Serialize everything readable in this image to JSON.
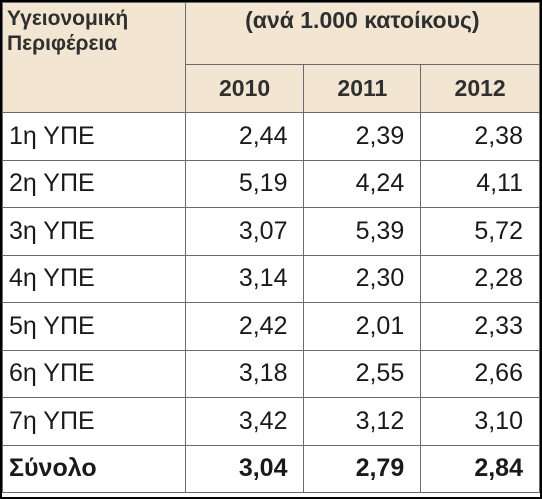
{
  "header": {
    "region_label": "Υγειονομική Περιφέρεια",
    "unit_label": "(ανά 1.000 κατοίκους)",
    "years": [
      "2010",
      "2011",
      "2012"
    ]
  },
  "rows": [
    {
      "label": "1η ΥΠΕ",
      "values": [
        "2,44",
        "2,39",
        "2,38"
      ]
    },
    {
      "label": "2η ΥΠΕ",
      "values": [
        "5,19",
        "4,24",
        "4,11"
      ]
    },
    {
      "label": "3η ΥΠΕ",
      "values": [
        "3,07",
        "5,39",
        "5,72"
      ]
    },
    {
      "label": "4η ΥΠΕ",
      "values": [
        "3,14",
        "2,30",
        "2,28"
      ]
    },
    {
      "label": "5η ΥΠΕ",
      "values": [
        "2,42",
        "2,01",
        "2,33"
      ]
    },
    {
      "label": "6η ΥΠΕ",
      "values": [
        "3,18",
        "2,55",
        "2,66"
      ]
    },
    {
      "label": "7η ΥΠΕ",
      "values": [
        "3,42",
        "3,12",
        "3,10"
      ]
    }
  ],
  "total": {
    "label": "Σύνολο",
    "values": [
      "3,04",
      "2,79",
      "2,84"
    ]
  },
  "colors": {
    "header_background": "#f2e6d2",
    "border": "#6b6b6b",
    "frame": "#000000"
  }
}
